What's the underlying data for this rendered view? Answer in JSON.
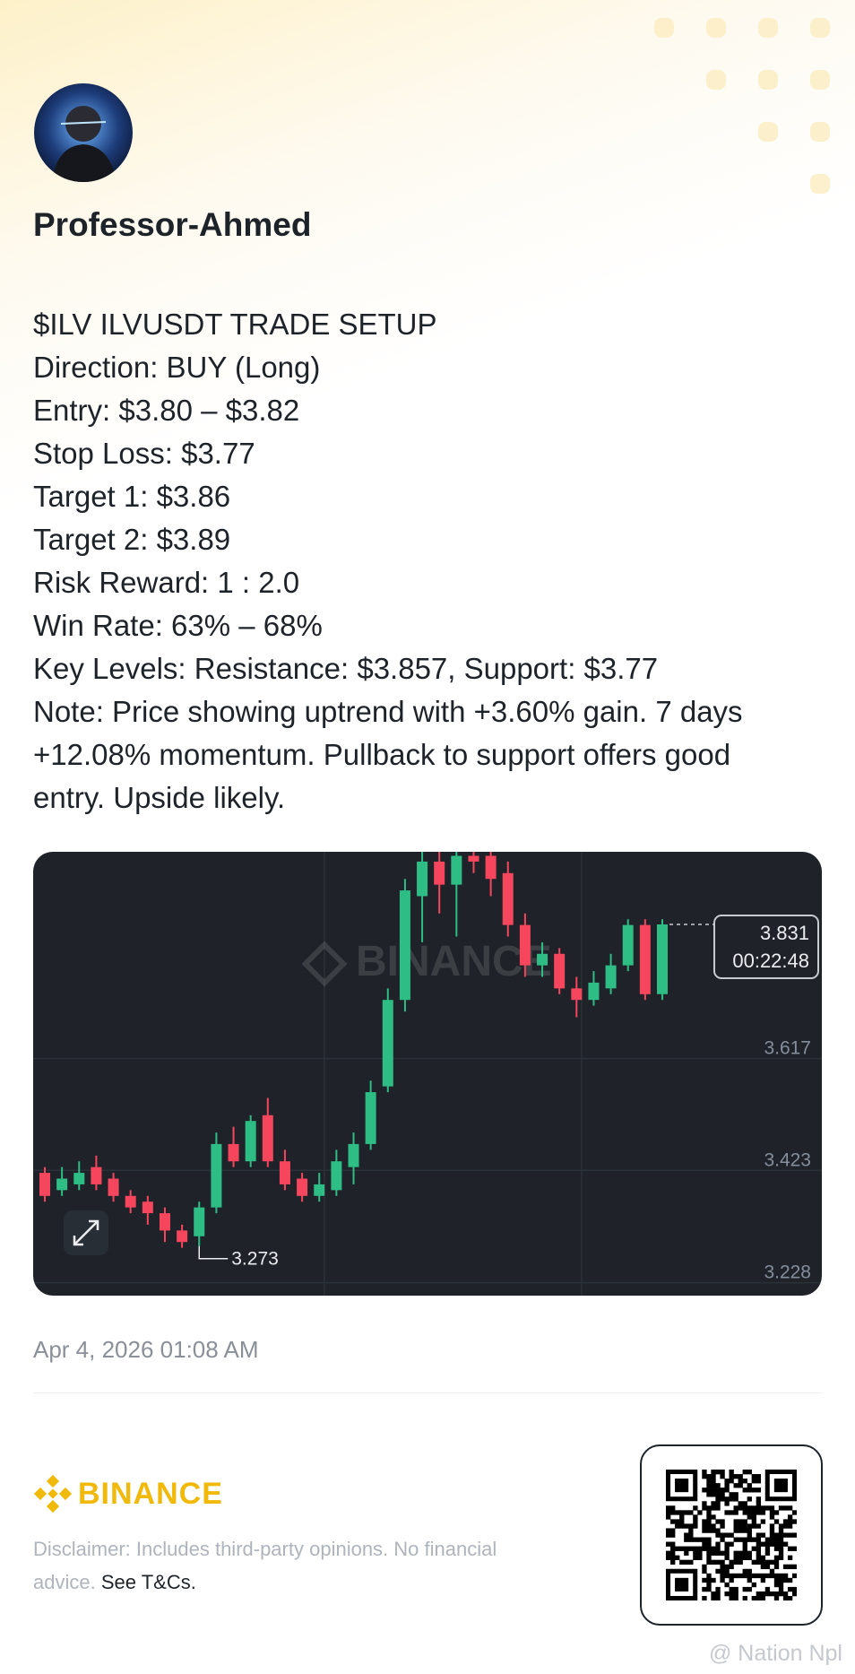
{
  "author": {
    "name": "Professor-Ahmed"
  },
  "post": {
    "lines": [
      "$ILV ILVUSDT TRADE SETUP",
      "Direction: BUY (Long)",
      "Entry: $3.80 – $3.82",
      "Stop Loss: $3.77",
      "Target 1: $3.86",
      "Target 2: $3.89",
      "Risk Reward: 1 : 2.0",
      "Win Rate: 63% – 68%",
      "Key Levels: Resistance: $3.857, Support: $3.77",
      "Note: Price showing uptrend with +3.60% gain. 7 days",
      "+12.08% momentum. Pullback to support offers good",
      "entry. Upside likely."
    ]
  },
  "chart": {
    "watermark": "BINANCE",
    "ylim": [
      3.187,
      3.957
    ],
    "yticks": [
      3.617,
      3.423,
      3.228
    ],
    "up_color": "#2ebd85",
    "down_color": "#f6465d",
    "candles": [
      {
        "open": 3.4,
        "close": 3.36,
        "high": 3.41,
        "low": 3.35
      },
      {
        "open": 3.37,
        "close": 3.39,
        "high": 3.41,
        "low": 3.36
      },
      {
        "open": 3.38,
        "close": 3.4,
        "high": 3.42,
        "low": 3.37
      },
      {
        "open": 3.41,
        "close": 3.38,
        "high": 3.43,
        "low": 3.37
      },
      {
        "open": 3.39,
        "close": 3.36,
        "high": 3.4,
        "low": 3.35
      },
      {
        "open": 3.36,
        "close": 3.34,
        "high": 3.37,
        "low": 3.33
      },
      {
        "open": 3.35,
        "close": 3.33,
        "high": 3.36,
        "low": 3.31
      },
      {
        "open": 3.33,
        "close": 3.3,
        "high": 3.34,
        "low": 3.28
      },
      {
        "open": 3.3,
        "close": 3.28,
        "high": 3.31,
        "low": 3.27
      },
      {
        "open": 3.29,
        "close": 3.34,
        "high": 3.35,
        "low": 3.273
      },
      {
        "open": 3.34,
        "close": 3.45,
        "high": 3.47,
        "low": 3.33
      },
      {
        "open": 3.45,
        "close": 3.42,
        "high": 3.48,
        "low": 3.41
      },
      {
        "open": 3.42,
        "close": 3.49,
        "high": 3.5,
        "low": 3.41
      },
      {
        "open": 3.5,
        "close": 3.42,
        "high": 3.53,
        "low": 3.41
      },
      {
        "open": 3.42,
        "close": 3.38,
        "high": 3.44,
        "low": 3.37
      },
      {
        "open": 3.39,
        "close": 3.36,
        "high": 3.4,
        "low": 3.35
      },
      {
        "open": 3.36,
        "close": 3.38,
        "high": 3.4,
        "low": 3.35
      },
      {
        "open": 3.37,
        "close": 3.42,
        "high": 3.44,
        "low": 3.36
      },
      {
        "open": 3.41,
        "close": 3.45,
        "high": 3.47,
        "low": 3.38
      },
      {
        "open": 3.45,
        "close": 3.54,
        "high": 3.56,
        "low": 3.44
      },
      {
        "open": 3.55,
        "close": 3.7,
        "high": 3.72,
        "low": 3.54
      },
      {
        "open": 3.7,
        "close": 3.89,
        "high": 3.91,
        "low": 3.68
      },
      {
        "open": 3.88,
        "close": 3.94,
        "high": 3.96,
        "low": 3.8
      },
      {
        "open": 3.94,
        "close": 3.9,
        "high": 3.96,
        "low": 3.85
      },
      {
        "open": 3.9,
        "close": 3.95,
        "high": 3.96,
        "low": 3.81
      },
      {
        "open": 3.95,
        "close": 3.94,
        "high": 3.96,
        "low": 3.92
      },
      {
        "open": 3.95,
        "close": 3.91,
        "high": 3.96,
        "low": 3.88
      },
      {
        "open": 3.92,
        "close": 3.83,
        "high": 3.94,
        "low": 3.81
      },
      {
        "open": 3.83,
        "close": 3.76,
        "high": 3.85,
        "low": 3.74
      },
      {
        "open": 3.76,
        "close": 3.78,
        "high": 3.8,
        "low": 3.74
      },
      {
        "open": 3.78,
        "close": 3.72,
        "high": 3.79,
        "low": 3.71
      },
      {
        "open": 3.72,
        "close": 3.7,
        "high": 3.74,
        "low": 3.67
      },
      {
        "open": 3.7,
        "close": 3.73,
        "high": 3.75,
        "low": 3.69
      },
      {
        "open": 3.72,
        "close": 3.76,
        "high": 3.78,
        "low": 3.71
      },
      {
        "open": 3.76,
        "close": 3.83,
        "high": 3.84,
        "low": 3.75
      },
      {
        "open": 3.83,
        "close": 3.71,
        "high": 3.84,
        "low": 3.7
      },
      {
        "open": 3.71,
        "close": 3.831,
        "high": 3.84,
        "low": 3.7
      }
    ],
    "last_price": 3.831,
    "countdown": "00:22:48",
    "low_marker": 3.273
  },
  "footer": {
    "date": "Apr 4, 2026 01:08 AM",
    "brand": "BINANCE",
    "disclaimer": "Disclaimer: Includes third-party opinions. No financial advice.",
    "link": "See T&Cs.",
    "watermark": "@ Nation Npl"
  }
}
